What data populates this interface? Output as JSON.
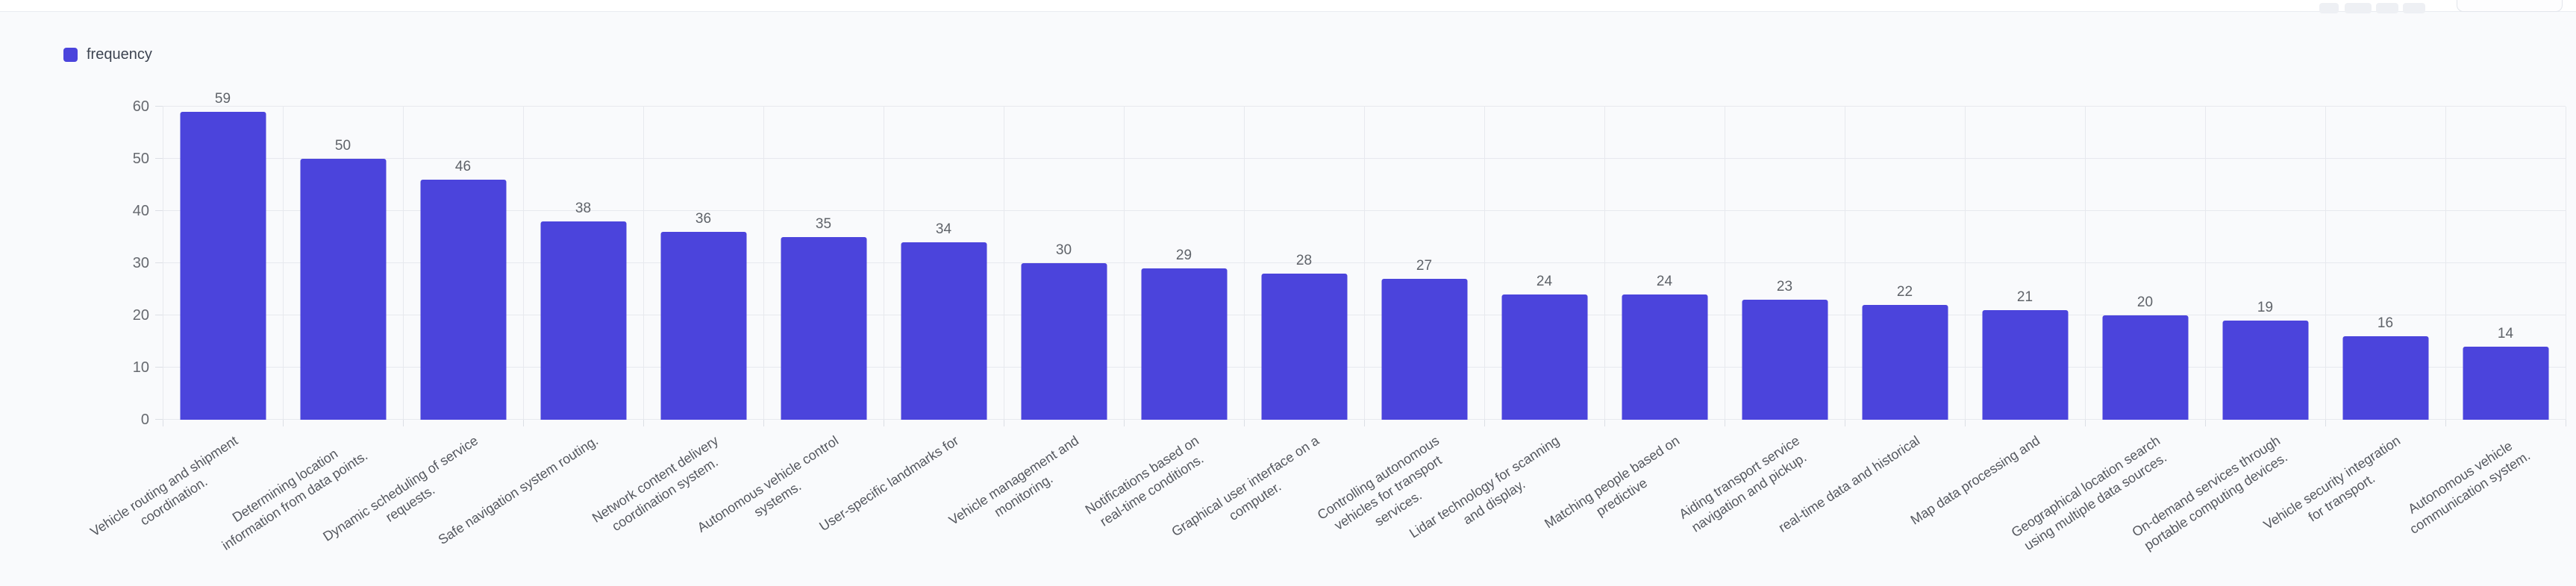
{
  "legend": {
    "label": "frequency"
  },
  "chart_data": {
    "type": "bar",
    "title": "",
    "xlabel": "",
    "ylabel": "",
    "legend_entries": [
      "frequency"
    ],
    "legend_position": "top-left",
    "grid": true,
    "ylim": [
      0,
      60
    ],
    "yticks": [
      0,
      10,
      20,
      30,
      40,
      50,
      60
    ],
    "value_labels_shown": true,
    "bar_color": "#4b44dc",
    "colors": {
      "bar": "#4b44dc",
      "legend_text": "#3d4451",
      "value_label": "#5f6369",
      "y_tick_label": "#66696f",
      "x_tick_label": "#54575e",
      "gridline": "#e7e9ee",
      "background": "#f9fafc",
      "topbar_background": "#ffffff"
    },
    "categories": [
      [
        "Vehicle routing and shipment",
        "coordination."
      ],
      [
        "Determining location",
        "information from data points."
      ],
      [
        "Dynamic scheduling of service",
        "requests."
      ],
      [
        "Safe navigation system routing."
      ],
      [
        "Network content delivery",
        "coordination system."
      ],
      [
        "Autonomous vehicle control",
        "systems."
      ],
      [
        "User-specific landmarks for"
      ],
      [
        "Vehicle management and",
        "monitoring."
      ],
      [
        "Notifications based on",
        "real-time conditions."
      ],
      [
        "Graphical user interface on a",
        "computer."
      ],
      [
        "Controlling autonomous",
        "vehicles for transport",
        "services."
      ],
      [
        "Lidar technology for scanning",
        "and display."
      ],
      [
        "Matching people based on",
        "predictive"
      ],
      [
        "Aiding transport service",
        "navigation and pickup."
      ],
      [
        "real-time data and historical"
      ],
      [
        "Map data processing and"
      ],
      [
        "Geographical location search",
        "using multiple data sources."
      ],
      [
        "On-demand services through",
        "portable computing devices."
      ],
      [
        "Vehicle security integration",
        "for transport."
      ],
      [
        "Autonomous vehicle",
        "communication system."
      ]
    ],
    "series": [
      {
        "name": "frequency",
        "values": [
          59,
          50,
          46,
          38,
          36,
          35,
          34,
          30,
          29,
          28,
          27,
          24,
          24,
          23,
          22,
          21,
          20,
          19,
          16,
          14
        ]
      }
    ]
  }
}
